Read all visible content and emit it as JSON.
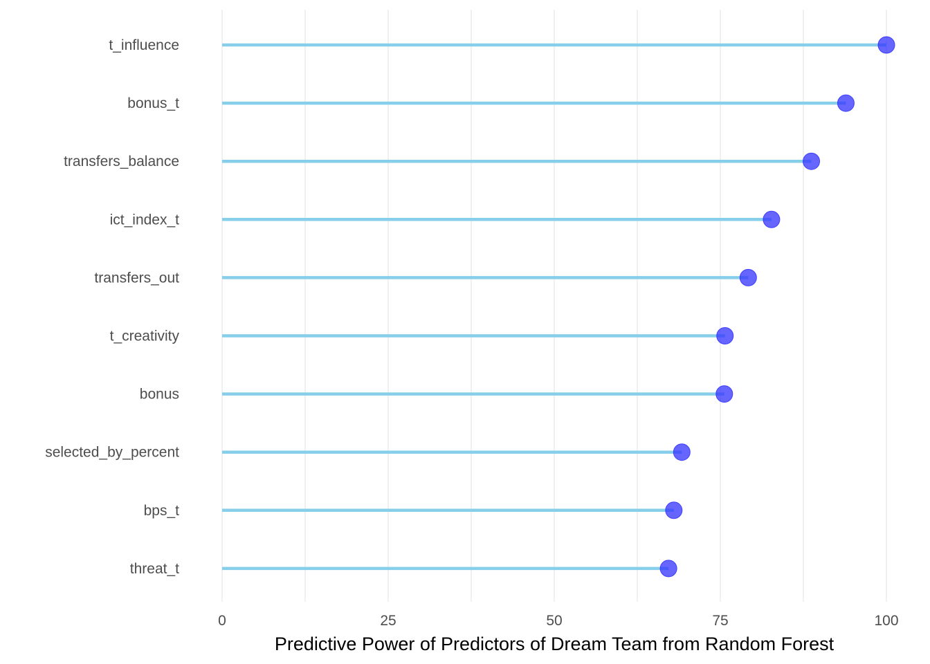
{
  "chart_data": {
    "type": "lollipop",
    "title": "",
    "xlabel": "Predictive Power of Predictors of Dream Team from Random Forest",
    "ylabel": "",
    "xlim": [
      0,
      100
    ],
    "x_ticks": [
      0,
      25,
      50,
      75,
      100
    ],
    "grid": true,
    "categories": [
      "t_influence",
      "bonus_t",
      "transfers_balance",
      "ict_index_t",
      "transfers_out",
      "t_creativity",
      "bonus",
      "selected_by_percent",
      "bps_t",
      "threat_t"
    ],
    "values": [
      100,
      93.9,
      88.7,
      82.7,
      79.2,
      75.7,
      75.6,
      69.2,
      68.0,
      67.2
    ],
    "colors": {
      "stem": "#87CEEB",
      "point": "#3333ff",
      "grid": "#e0e0e0",
      "tick_text": "#4d4d4d"
    }
  }
}
